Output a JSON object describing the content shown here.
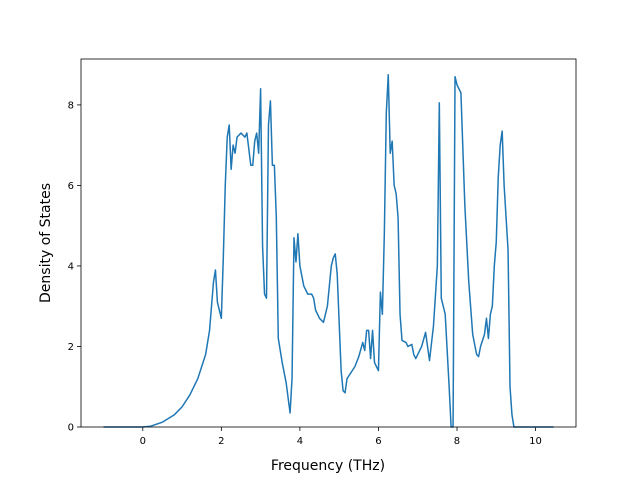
{
  "chart_data": {
    "type": "line",
    "xlabel": "Frequency (THz)",
    "ylabel": "Density of States",
    "xlim": [
      -1.573,
      11.03
    ],
    "ylim": [
      0,
      9.14
    ],
    "xticks": [
      0,
      2,
      4,
      6,
      8,
      10
    ],
    "yticks": [
      0,
      2,
      4,
      6,
      8
    ],
    "series": [
      {
        "color": "#1f77b4",
        "x": [
          -1,
          0,
          0.2,
          0.5,
          0.8,
          1.0,
          1.2,
          1.4,
          1.6,
          1.7,
          1.8,
          1.85,
          1.9,
          2.0,
          2.05,
          2.1,
          2.15,
          2.2,
          2.25,
          2.3,
          2.35,
          2.4,
          2.5,
          2.6,
          2.65,
          2.7,
          2.75,
          2.8,
          2.85,
          2.9,
          2.95,
          3.0,
          3.05,
          3.1,
          3.15,
          3.2,
          3.25,
          3.3,
          3.35,
          3.4,
          3.45,
          3.55,
          3.65,
          3.75,
          3.8,
          3.85,
          3.9,
          3.95,
          4.0,
          4.1,
          4.2,
          4.3,
          4.35,
          4.4,
          4.5,
          4.6,
          4.7,
          4.8,
          4.85,
          4.9,
          4.95,
          5.0,
          5.05,
          5.1,
          5.15,
          5.2,
          5.3,
          5.4,
          5.5,
          5.6,
          5.65,
          5.7,
          5.75,
          5.8,
          5.85,
          5.9,
          6.0,
          6.05,
          6.1,
          6.15,
          6.2,
          6.25,
          6.3,
          6.35,
          6.4,
          6.45,
          6.5,
          6.55,
          6.6,
          6.7,
          6.75,
          6.85,
          6.9,
          6.95,
          7.0,
          7.1,
          7.2,
          7.3,
          7.4,
          7.5,
          7.55,
          7.6,
          7.7,
          7.8,
          7.85,
          7.9,
          7.95,
          8.0,
          8.1,
          8.2,
          8.3,
          8.4,
          8.5,
          8.55,
          8.6,
          8.7,
          8.75,
          8.8,
          8.85,
          8.9,
          8.95,
          9.0,
          9.05,
          9.1,
          9.15,
          9.2,
          9.3,
          9.35,
          9.4,
          9.45,
          10.46
        ],
        "values": [
          0,
          0,
          0.02,
          0.12,
          0.3,
          0.5,
          0.8,
          1.2,
          1.8,
          2.4,
          3.6,
          3.9,
          3.1,
          2.7,
          4.2,
          6.0,
          7.2,
          7.5,
          6.4,
          7.0,
          6.8,
          7.2,
          7.3,
          7.2,
          7.3,
          6.9,
          6.5,
          6.5,
          7.1,
          7.3,
          6.8,
          8.4,
          4.5,
          3.3,
          3.2,
          7.5,
          8.1,
          6.5,
          6.5,
          5.2,
          2.2,
          1.6,
          1.1,
          0.35,
          1.2,
          4.7,
          4.1,
          4.8,
          4.0,
          3.5,
          3.3,
          3.3,
          3.2,
          2.9,
          2.7,
          2.6,
          3.0,
          4.0,
          4.2,
          4.3,
          3.8,
          2.6,
          1.4,
          0.9,
          0.85,
          1.2,
          1.35,
          1.5,
          1.75,
          2.1,
          1.9,
          2.4,
          2.4,
          1.7,
          2.4,
          1.6,
          1.4,
          3.35,
          2.8,
          4.8,
          7.8,
          8.75,
          6.8,
          7.1,
          6.0,
          5.8,
          5.2,
          2.8,
          2.15,
          2.1,
          2.0,
          2.05,
          1.8,
          1.7,
          1.8,
          2.0,
          2.35,
          1.65,
          2.5,
          4.0,
          8.05,
          3.2,
          2.8,
          1.0,
          0,
          0,
          8.7,
          8.5,
          8.3,
          5.5,
          3.6,
          2.3,
          1.8,
          1.75,
          2.0,
          2.3,
          2.7,
          2.2,
          2.8,
          3.0,
          4.0,
          4.6,
          6.2,
          7.0,
          7.35,
          6.0,
          4.4,
          1.0,
          0.3,
          0,
          0
        ]
      }
    ]
  }
}
